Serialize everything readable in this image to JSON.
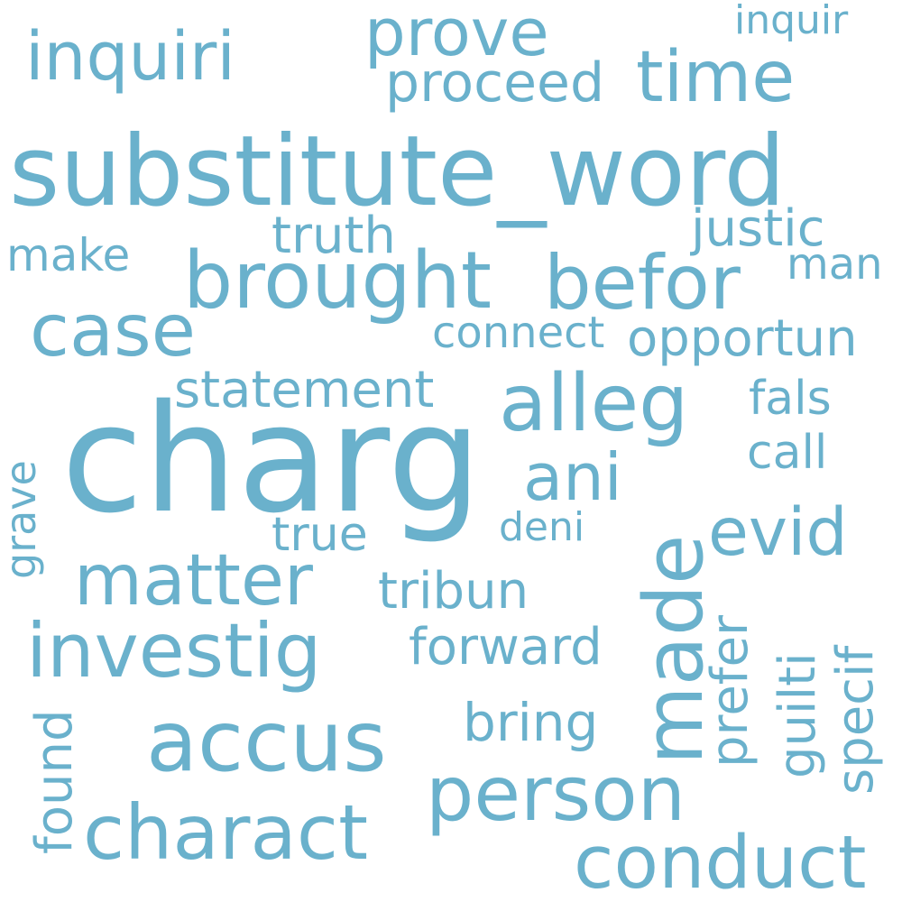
{
  "color": "#6ab1cc",
  "words": {
    "charg": "charg",
    "substitute_word": "substitute_word",
    "brought": "brought",
    "befor": "befor",
    "alleg": "alleg",
    "made": "made",
    "investig": "investig",
    "accus": "accus",
    "person": "person",
    "charact": "charact",
    "conduct": "conduct",
    "matter": "matter",
    "case": "case",
    "time": "time",
    "inquiri": "inquiri",
    "prove": "prove",
    "ani": "ani",
    "evid": "evid",
    "proceed": "proceed",
    "statement": "statement",
    "forward": "forward",
    "bring": "bring",
    "tribun": "tribun",
    "opportun": "opportun",
    "truth": "truth",
    "justic": "justic",
    "connect": "connect",
    "true": "true",
    "fals": "fals",
    "call": "call",
    "make": "make",
    "man": "man",
    "inquir": "inquir",
    "deni": "deni",
    "grave": "grave",
    "found": "found",
    "prefer": "prefer",
    "guilti": "guilti",
    "specif": "specif"
  }
}
